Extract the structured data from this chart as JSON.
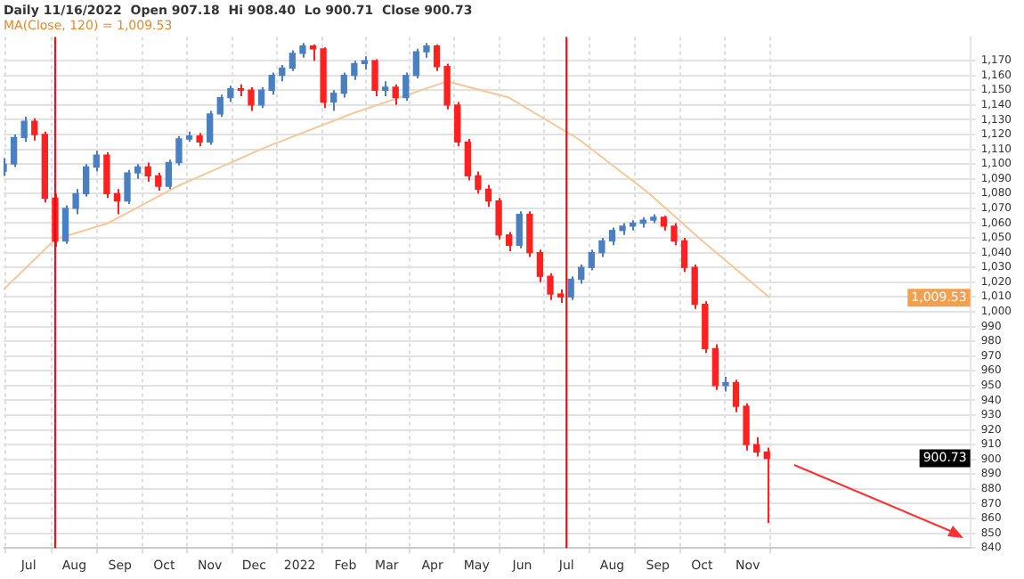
{
  "chart_data": {
    "type": "candlestick",
    "title": "Daily 11/16/2022  Open 907.18  Hi 908.40  Lo 900.71  Close 900.73",
    "subtitle": "MA(Close, 120) = 1,009.53",
    "x": [
      "2021-06-14",
      "2021-06-21",
      "2021-06-28",
      "2021-07-05",
      "2021-07-12",
      "2021-07-19",
      "2021-07-26",
      "2021-08-02",
      "2021-08-09",
      "2021-08-16",
      "2021-08-23",
      "2021-08-30",
      "2021-09-06",
      "2021-09-13",
      "2021-09-20",
      "2021-09-27",
      "2021-10-04",
      "2021-10-11",
      "2021-10-18",
      "2021-10-25",
      "2021-11-01",
      "2021-11-08",
      "2021-11-15",
      "2021-11-22",
      "2021-11-29",
      "2021-12-06",
      "2021-12-13",
      "2021-12-20",
      "2021-12-27",
      "2022-01-03",
      "2022-01-10",
      "2022-01-17",
      "2022-01-24",
      "2022-01-31",
      "2022-02-07",
      "2022-02-14",
      "2022-02-21",
      "2022-02-28",
      "2022-03-07",
      "2022-03-14",
      "2022-03-21",
      "2022-03-28",
      "2022-04-04",
      "2022-04-11",
      "2022-04-18",
      "2022-04-25",
      "2022-05-02",
      "2022-05-09",
      "2022-05-16",
      "2022-05-23",
      "2022-05-30",
      "2022-06-06",
      "2022-06-13",
      "2022-06-20",
      "2022-06-27",
      "2022-07-04",
      "2022-07-11",
      "2022-07-18",
      "2022-07-25",
      "2022-08-01",
      "2022-08-08",
      "2022-08-15",
      "2022-08-22",
      "2022-08-29",
      "2022-09-05",
      "2022-09-12",
      "2022-09-19",
      "2022-09-26",
      "2022-10-03",
      "2022-10-10",
      "2022-10-17",
      "2022-10-24",
      "2022-10-31",
      "2022-11-07",
      "2022-11-14"
    ],
    "ohlc": [
      [
        1095,
        1104,
        1092,
        1100
      ],
      [
        1100,
        1120,
        1098,
        1118
      ],
      [
        1118,
        1132,
        1115,
        1129
      ],
      [
        1129,
        1131,
        1116,
        1120
      ],
      [
        1120,
        1122,
        1074,
        1077
      ],
      [
        1077,
        1080,
        1044,
        1048
      ],
      [
        1048,
        1072,
        1046,
        1070
      ],
      [
        1070,
        1083,
        1066,
        1080
      ],
      [
        1080,
        1100,
        1078,
        1098
      ],
      [
        1098,
        1109,
        1095,
        1106
      ],
      [
        1106,
        1108,
        1077,
        1080
      ],
      [
        1080,
        1083,
        1066,
        1075
      ],
      [
        1075,
        1096,
        1073,
        1094
      ],
      [
        1094,
        1100,
        1090,
        1098
      ],
      [
        1098,
        1101,
        1088,
        1092
      ],
      [
        1092,
        1094,
        1082,
        1085
      ],
      [
        1085,
        1103,
        1083,
        1101
      ],
      [
        1101,
        1119,
        1099,
        1117
      ],
      [
        1117,
        1122,
        1115,
        1119
      ],
      [
        1119,
        1121,
        1112,
        1115
      ],
      [
        1115,
        1136,
        1113,
        1134
      ],
      [
        1134,
        1147,
        1132,
        1145
      ],
      [
        1145,
        1153,
        1142,
        1151
      ],
      [
        1151,
        1154,
        1146,
        1150
      ],
      [
        1150,
        1152,
        1136,
        1140
      ],
      [
        1140,
        1152,
        1138,
        1150
      ],
      [
        1150,
        1162,
        1147,
        1160
      ],
      [
        1160,
        1167,
        1156,
        1165
      ],
      [
        1165,
        1177,
        1163,
        1175
      ],
      [
        1175,
        1182,
        1172,
        1180
      ],
      [
        1180,
        1181,
        1170,
        1178
      ],
      [
        1178,
        1179,
        1138,
        1142
      ],
      [
        1142,
        1150,
        1136,
        1148
      ],
      [
        1148,
        1162,
        1145,
        1160
      ],
      [
        1160,
        1170,
        1157,
        1168
      ],
      [
        1168,
        1173,
        1164,
        1170
      ],
      [
        1170,
        1171,
        1146,
        1150
      ],
      [
        1150,
        1156,
        1146,
        1152
      ],
      [
        1152,
        1154,
        1140,
        1145
      ],
      [
        1145,
        1162,
        1143,
        1160
      ],
      [
        1160,
        1178,
        1158,
        1176
      ],
      [
        1176,
        1182,
        1172,
        1180
      ],
      [
        1180,
        1181,
        1163,
        1166
      ],
      [
        1166,
        1168,
        1137,
        1140
      ],
      [
        1140,
        1142,
        1112,
        1115
      ],
      [
        1115,
        1117,
        1089,
        1092
      ],
      [
        1092,
        1095,
        1080,
        1083
      ],
      [
        1083,
        1086,
        1071,
        1075
      ],
      [
        1075,
        1077,
        1049,
        1052
      ],
      [
        1052,
        1054,
        1041,
        1045
      ],
      [
        1045,
        1068,
        1043,
        1066
      ],
      [
        1066,
        1068,
        1037,
        1040
      ],
      [
        1040,
        1042,
        1020,
        1024
      ],
      [
        1024,
        1026,
        1008,
        1012
      ],
      [
        1012,
        1015,
        1006,
        1010
      ],
      [
        1010,
        1024,
        1008,
        1022
      ],
      [
        1022,
        1032,
        1019,
        1030
      ],
      [
        1030,
        1042,
        1028,
        1040
      ],
      [
        1040,
        1050,
        1037,
        1048
      ],
      [
        1048,
        1057,
        1045,
        1055
      ],
      [
        1055,
        1060,
        1052,
        1058
      ],
      [
        1058,
        1062,
        1055,
        1060
      ],
      [
        1060,
        1064,
        1057,
        1062
      ],
      [
        1062,
        1066,
        1060,
        1064
      ],
      [
        1064,
        1065,
        1055,
        1058
      ],
      [
        1058,
        1060,
        1045,
        1048
      ],
      [
        1048,
        1050,
        1027,
        1030
      ],
      [
        1030,
        1032,
        1002,
        1005
      ],
      [
        1005,
        1007,
        972,
        975
      ],
      [
        975,
        978,
        947,
        950
      ],
      [
        950,
        956,
        946,
        952
      ],
      [
        952,
        954,
        932,
        936
      ],
      [
        936,
        938,
        906,
        910
      ],
      [
        910,
        915,
        902,
        905
      ],
      [
        905,
        908,
        857,
        900.73
      ]
    ],
    "colors": [
      "#4a7fc1",
      "#4a7fc1",
      "#4a7fc1",
      "#ff2020",
      "#ff2020",
      "#ff2020",
      "#4a7fc1",
      "#4a7fc1",
      "#4a7fc1",
      "#4a7fc1",
      "#ff2020",
      "#ff2020",
      "#4a7fc1",
      "#4a7fc1",
      "#ff2020",
      "#ff2020",
      "#4a7fc1",
      "#4a7fc1",
      "#4a7fc1",
      "#ff2020",
      "#4a7fc1",
      "#4a7fc1",
      "#4a7fc1",
      "#ff2020",
      "#ff2020",
      "#4a7fc1",
      "#4a7fc1",
      "#4a7fc1",
      "#4a7fc1",
      "#4a7fc1",
      "#ff2020",
      "#ff2020",
      "#4a7fc1",
      "#4a7fc1",
      "#4a7fc1",
      "#4a7fc1",
      "#ff2020",
      "#4a7fc1",
      "#ff2020",
      "#4a7fc1",
      "#4a7fc1",
      "#4a7fc1",
      "#ff2020",
      "#ff2020",
      "#ff2020",
      "#ff2020",
      "#ff2020",
      "#ff2020",
      "#ff2020",
      "#ff2020",
      "#4a7fc1",
      "#ff2020",
      "#ff2020",
      "#ff2020",
      "#ff2020",
      "#4a7fc1",
      "#4a7fc1",
      "#4a7fc1",
      "#4a7fc1",
      "#4a7fc1",
      "#4a7fc1",
      "#4a7fc1",
      "#4a7fc1",
      "#4a7fc1",
      "#ff2020",
      "#ff2020",
      "#ff2020",
      "#ff2020",
      "#ff2020",
      "#ff2020",
      "#4a7fc1",
      "#ff2020",
      "#ff2020",
      "#ff2020",
      "#ff2020"
    ],
    "series": [
      {
        "type": "line",
        "color": "#f5c89a",
        "x": [
          "2021-06-14",
          "2021-07-19",
          "2021-08-24",
          "2021-10-10",
          "2021-12-08",
          "2022-02-05",
          "2022-04-11",
          "2022-05-23",
          "2022-07-09",
          "2022-08-25",
          "2022-09-30",
          "2022-11-16"
        ],
        "values": [
          1015,
          1049,
          1060,
          1085,
          1111,
          1134,
          1156,
          1145,
          1117,
          1081,
          1049,
          1009.53
        ]
      }
    ],
    "ref_lines": [
      {
        "axis": "x",
        "value": "2021-07-19",
        "color": "#ff0000"
      },
      {
        "axis": "x",
        "value": "2022-07-01",
        "color": "#ff0000"
      }
    ],
    "annotations": [
      "900.73",
      "1,009.53"
    ],
    "xlim": [
      "2021-06-14",
      "2023-04-01"
    ],
    "xticks": [
      {
        "value": "2021-07-01",
        "label": "Jul"
      },
      {
        "value": "2021-08-01",
        "label": "Aug"
      },
      {
        "value": "2021-09-01",
        "label": "Sep"
      },
      {
        "value": "2021-10-01",
        "label": "Oct"
      },
      {
        "value": "2021-11-01",
        "label": "Nov"
      },
      {
        "value": "2021-12-01",
        "label": "Dec"
      },
      {
        "value": "2022-01-01",
        "label": "2022"
      },
      {
        "value": "2022-02-01",
        "label": "Feb"
      },
      {
        "value": "2022-03-01",
        "label": "Mar"
      },
      {
        "value": "2022-04-01",
        "label": "Apr"
      },
      {
        "value": "2022-05-01",
        "label": "May"
      },
      {
        "value": "2022-06-01",
        "label": "Jun"
      },
      {
        "value": "2022-07-01",
        "label": "Jul"
      },
      {
        "value": "2022-08-01",
        "label": "Aug"
      },
      {
        "value": "2022-09-01",
        "label": "Sep"
      },
      {
        "value": "2022-10-01",
        "label": "Oct"
      },
      {
        "value": "2022-11-01",
        "label": "Nov"
      }
    ],
    "ylim": [
      840,
      1186
    ],
    "yticks": [
      840,
      850,
      860,
      870,
      880,
      890,
      900,
      910,
      920,
      930,
      940,
      950,
      960,
      970,
      980,
      990,
      {
        "value": 1000,
        "label": "1,000"
      },
      {
        "value": 1010,
        "label": "1,010"
      },
      {
        "value": 1020,
        "label": "1,020"
      },
      {
        "value": 1030,
        "label": "1,030"
      },
      {
        "value": 1040,
        "label": "1,040"
      },
      {
        "value": 1050,
        "label": "1,050"
      },
      {
        "value": 1060,
        "label": "1,060"
      },
      {
        "value": 1070,
        "label": "1,070"
      },
      {
        "value": 1080,
        "label": "1,080"
      },
      {
        "value": 1090,
        "label": "1,090"
      },
      {
        "value": 1100,
        "label": "1,100"
      },
      {
        "value": 1110,
        "label": "1,110"
      },
      {
        "value": 1120,
        "label": "1,120"
      },
      {
        "value": 1130,
        "label": "1,130"
      },
      {
        "value": 1140,
        "label": "1,140"
      },
      {
        "value": 1150,
        "label": "1,150"
      },
      {
        "value": 1160,
        "label": "1,160"
      },
      {
        "value": 1170,
        "label": "1,170"
      }
    ],
    "grid": true,
    "legend": false
  }
}
